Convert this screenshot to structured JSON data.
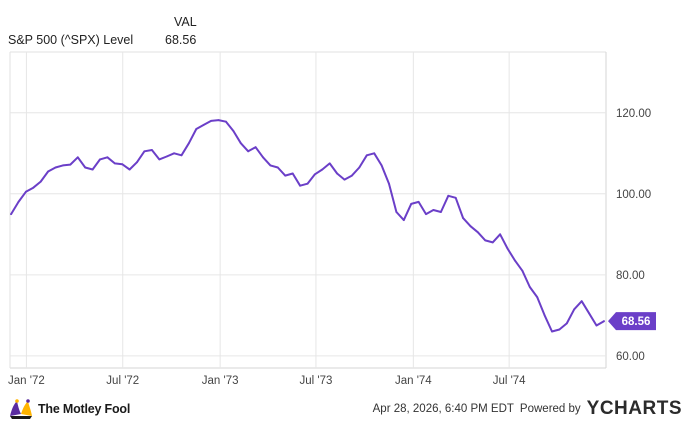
{
  "legend": {
    "series_label": "S&P 500 (^SPX) Level",
    "value_header": "VAL",
    "value": "68.56"
  },
  "chart_data": {
    "type": "line",
    "series": [
      {
        "name": "S&P 500 (^SPX) Level",
        "color": "#6b3fc8",
        "x": [
          "1971-12-03",
          "1971-12-17",
          "1971-12-31",
          "1972-01-14",
          "1972-01-28",
          "1972-02-11",
          "1972-02-25",
          "1972-03-10",
          "1972-03-24",
          "1972-04-07",
          "1972-04-21",
          "1972-05-05",
          "1972-05-19",
          "1972-06-02",
          "1972-06-16",
          "1972-06-30",
          "1972-07-14",
          "1972-07-28",
          "1972-08-11",
          "1972-08-25",
          "1972-09-08",
          "1972-09-22",
          "1972-10-06",
          "1972-10-20",
          "1972-11-03",
          "1972-11-17",
          "1972-12-01",
          "1972-12-15",
          "1972-12-29",
          "1973-01-12",
          "1973-01-26",
          "1973-02-09",
          "1973-02-23",
          "1973-03-09",
          "1973-03-23",
          "1973-04-06",
          "1973-04-20",
          "1973-05-04",
          "1973-05-18",
          "1973-06-01",
          "1973-06-15",
          "1973-06-29",
          "1973-07-13",
          "1973-07-27",
          "1973-08-10",
          "1973-08-24",
          "1973-09-07",
          "1973-09-21",
          "1973-10-05",
          "1973-10-19",
          "1973-11-02",
          "1973-11-16",
          "1973-11-30",
          "1973-12-14",
          "1973-12-28",
          "1974-01-11",
          "1974-01-25",
          "1974-02-08",
          "1974-02-22",
          "1974-03-08",
          "1974-03-22",
          "1974-04-05",
          "1974-04-19",
          "1974-05-03",
          "1974-05-17",
          "1974-05-31",
          "1974-06-14",
          "1974-06-28",
          "1974-07-12",
          "1974-07-26",
          "1974-08-09",
          "1974-08-23",
          "1974-09-06",
          "1974-09-20",
          "1974-10-04",
          "1974-10-18",
          "1974-11-01",
          "1974-11-15",
          "1974-11-29",
          "1974-12-13",
          "1974-12-27"
        ],
        "values": [
          95.0,
          98.0,
          100.5,
          101.5,
          103.0,
          105.5,
          106.5,
          107.0,
          107.2,
          109.0,
          106.5,
          106.0,
          108.5,
          109.0,
          107.5,
          107.3,
          106.0,
          107.8,
          110.5,
          110.8,
          108.5,
          109.2,
          110.0,
          109.5,
          112.5,
          116.0,
          117.0,
          118.0,
          118.2,
          117.8,
          115.5,
          112.5,
          110.5,
          111.5,
          109.0,
          107.0,
          106.5,
          104.5,
          105.0,
          102.0,
          102.5,
          104.8,
          106.0,
          107.5,
          105.0,
          103.5,
          104.5,
          106.5,
          109.5,
          110.0,
          107.0,
          102.5,
          95.5,
          93.5,
          97.5,
          98.0,
          95.0,
          96.0,
          95.5,
          99.5,
          99.0,
          94.0,
          92.0,
          90.5,
          88.5,
          88.0,
          90.0,
          86.5,
          83.5,
          81.0,
          77.0,
          74.5,
          70.0,
          66.0,
          66.5,
          68.0,
          71.5,
          73.5,
          70.5,
          67.5,
          68.56
        ],
        "last_value_label": "68.56"
      }
    ],
    "x_ticks": [
      "Jan '72",
      "Jul '72",
      "Jan '73",
      "Jul '73",
      "Jan '74",
      "Jul '74"
    ],
    "y_ticks": [
      "60.00",
      "80.00",
      "100.00",
      "120.00"
    ],
    "ylim": [
      57,
      135
    ],
    "xlabel": "",
    "ylabel": "",
    "title": "",
    "grid": true,
    "legend_position": "top-left"
  },
  "brand": {
    "name": "The Motley Fool"
  },
  "footer": {
    "timestamp": "Apr 28, 2026, 6:40 PM EDT",
    "powered_by": "Powered by",
    "provider": "YCHARTS"
  }
}
